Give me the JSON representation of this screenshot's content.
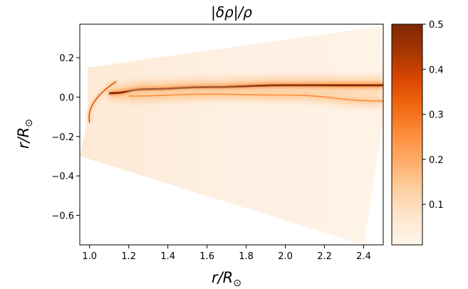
{
  "chart_data": {
    "type": "heatmap",
    "title": "|δρ|/ρ",
    "xlabel": "r/R",
    "xlabel_sub": "⊙",
    "ylabel": "r/R",
    "ylabel_sub": "⊙",
    "xlim": [
      0.95,
      2.5
    ],
    "ylim": [
      -0.75,
      0.37
    ],
    "xticks": [
      1.0,
      1.2,
      1.4,
      1.6,
      1.8,
      2.0,
      2.2,
      2.4
    ],
    "xtick_labels": [
      "1.0",
      "1.2",
      "1.4",
      "1.6",
      "1.8",
      "2.0",
      "2.2",
      "2.4"
    ],
    "yticks": [
      0.2,
      0.0,
      -0.2,
      -0.4,
      -0.6
    ],
    "ytick_labels": [
      "0.2",
      "0.0",
      "−0.2",
      "−0.4",
      "−0.6"
    ],
    "colorbar": {
      "range": [
        0.01,
        0.5
      ],
      "ticks": [
        0.1,
        0.2,
        0.3,
        0.4,
        0.5
      ],
      "tick_labels": [
        "0.1",
        "0.2",
        "0.3",
        "0.4",
        "0.5"
      ],
      "colormap": "Oranges",
      "colors": [
        "#fff5eb",
        "#fee6ce",
        "#fdd0a2",
        "#fdae6b",
        "#fd8d3c",
        "#f16913",
        "#d94801",
        "#a63603",
        "#7f2704"
      ]
    },
    "domain_polygon": [
      [
        0.99,
        0.15
      ],
      [
        2.49,
        0.36
      ],
      [
        2.5,
        -0.12
      ],
      [
        2.4,
        -0.75
      ],
      [
        0.95,
        -0.3
      ],
      [
        0.99,
        -0.12
      ]
    ],
    "structures": [
      {
        "name": "main current sheet",
        "x": [
          1.1,
          1.3,
          1.6,
          2.0,
          2.5
        ],
        "y": [
          0.02,
          0.04,
          0.05,
          0.06,
          0.06
        ],
        "value": 0.5
      },
      {
        "name": "lower streamer",
        "x": [
          1.2,
          1.6,
          2.0,
          2.5
        ],
        "y": [
          0.005,
          0.015,
          0.01,
          -0.02
        ],
        "value": 0.25
      },
      {
        "name": "coronal loop",
        "x": [
          1.0,
          1.1
        ],
        "y": [
          -0.13,
          0.08
        ],
        "value": 0.35
      }
    ]
  }
}
